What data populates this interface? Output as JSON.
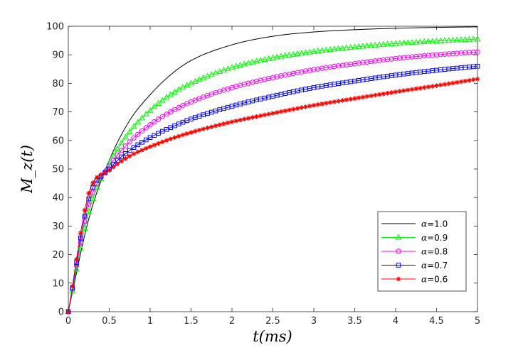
{
  "chart_data": {
    "type": "line",
    "xlabel": "t(ms)",
    "ylabel": "M_z(t)",
    "xlim": [
      0,
      5
    ],
    "ylim": [
      0,
      100
    ],
    "xticks": [
      "0",
      "0.5",
      "1",
      "1.5",
      "2",
      "2.5",
      "3",
      "3.5",
      "4",
      "4.5",
      "5"
    ],
    "yticks": [
      "0",
      "10",
      "20",
      "30",
      "40",
      "50",
      "60",
      "70",
      "80",
      "90",
      "100"
    ],
    "grid": false,
    "legend_position": "bottom-right",
    "x": [
      0,
      0.25,
      0.5,
      0.75,
      1,
      1.25,
      1.5,
      2,
      2.5,
      3,
      3.5,
      4,
      4.5,
      5
    ],
    "series": [
      {
        "name": "α=1.0",
        "label_prefix": "α",
        "label_value": "=1.0",
        "color": "#000000",
        "marker": "none",
        "values": [
          0,
          32.5,
          53,
          67,
          76,
          83,
          88,
          93.5,
          96.5,
          98,
          98.8,
          99.3,
          99.6,
          99.8
        ]
      },
      {
        "name": "α=0.9",
        "label_prefix": "α",
        "label_value": "=0.9",
        "color": "#00ff00",
        "marker": "triangle",
        "values": [
          0,
          35,
          52,
          63,
          70.5,
          76,
          80,
          85.5,
          88.9,
          91.1,
          92.7,
          93.9,
          94.8,
          95.5
        ]
      },
      {
        "name": "α=0.8",
        "label_prefix": "α",
        "label_value": "=0.8",
        "color": "#ff00ff",
        "marker": "circle",
        "values": [
          0,
          37.5,
          51,
          59.5,
          65.5,
          70,
          73.5,
          78.5,
          82,
          84.8,
          86.9,
          88.7,
          90,
          91
        ]
      },
      {
        "name": "α=0.7",
        "label_prefix": "α",
        "label_value": "=0.7",
        "color": "#0000ff",
        "marker": "square",
        "values": [
          0,
          39.5,
          50,
          56.5,
          61,
          64.5,
          67.5,
          72,
          75.5,
          78.5,
          80.8,
          82.9,
          84.6,
          86
        ]
      },
      {
        "name": "α=0.6",
        "label_prefix": "α",
        "label_value": "=0.6",
        "color": "#ff0000",
        "marker": "star",
        "values": [
          0,
          41.5,
          49.5,
          54.5,
          57.8,
          60.5,
          62.8,
          66.5,
          69.5,
          72.3,
          74.7,
          77,
          79.2,
          81.5
        ]
      }
    ]
  }
}
